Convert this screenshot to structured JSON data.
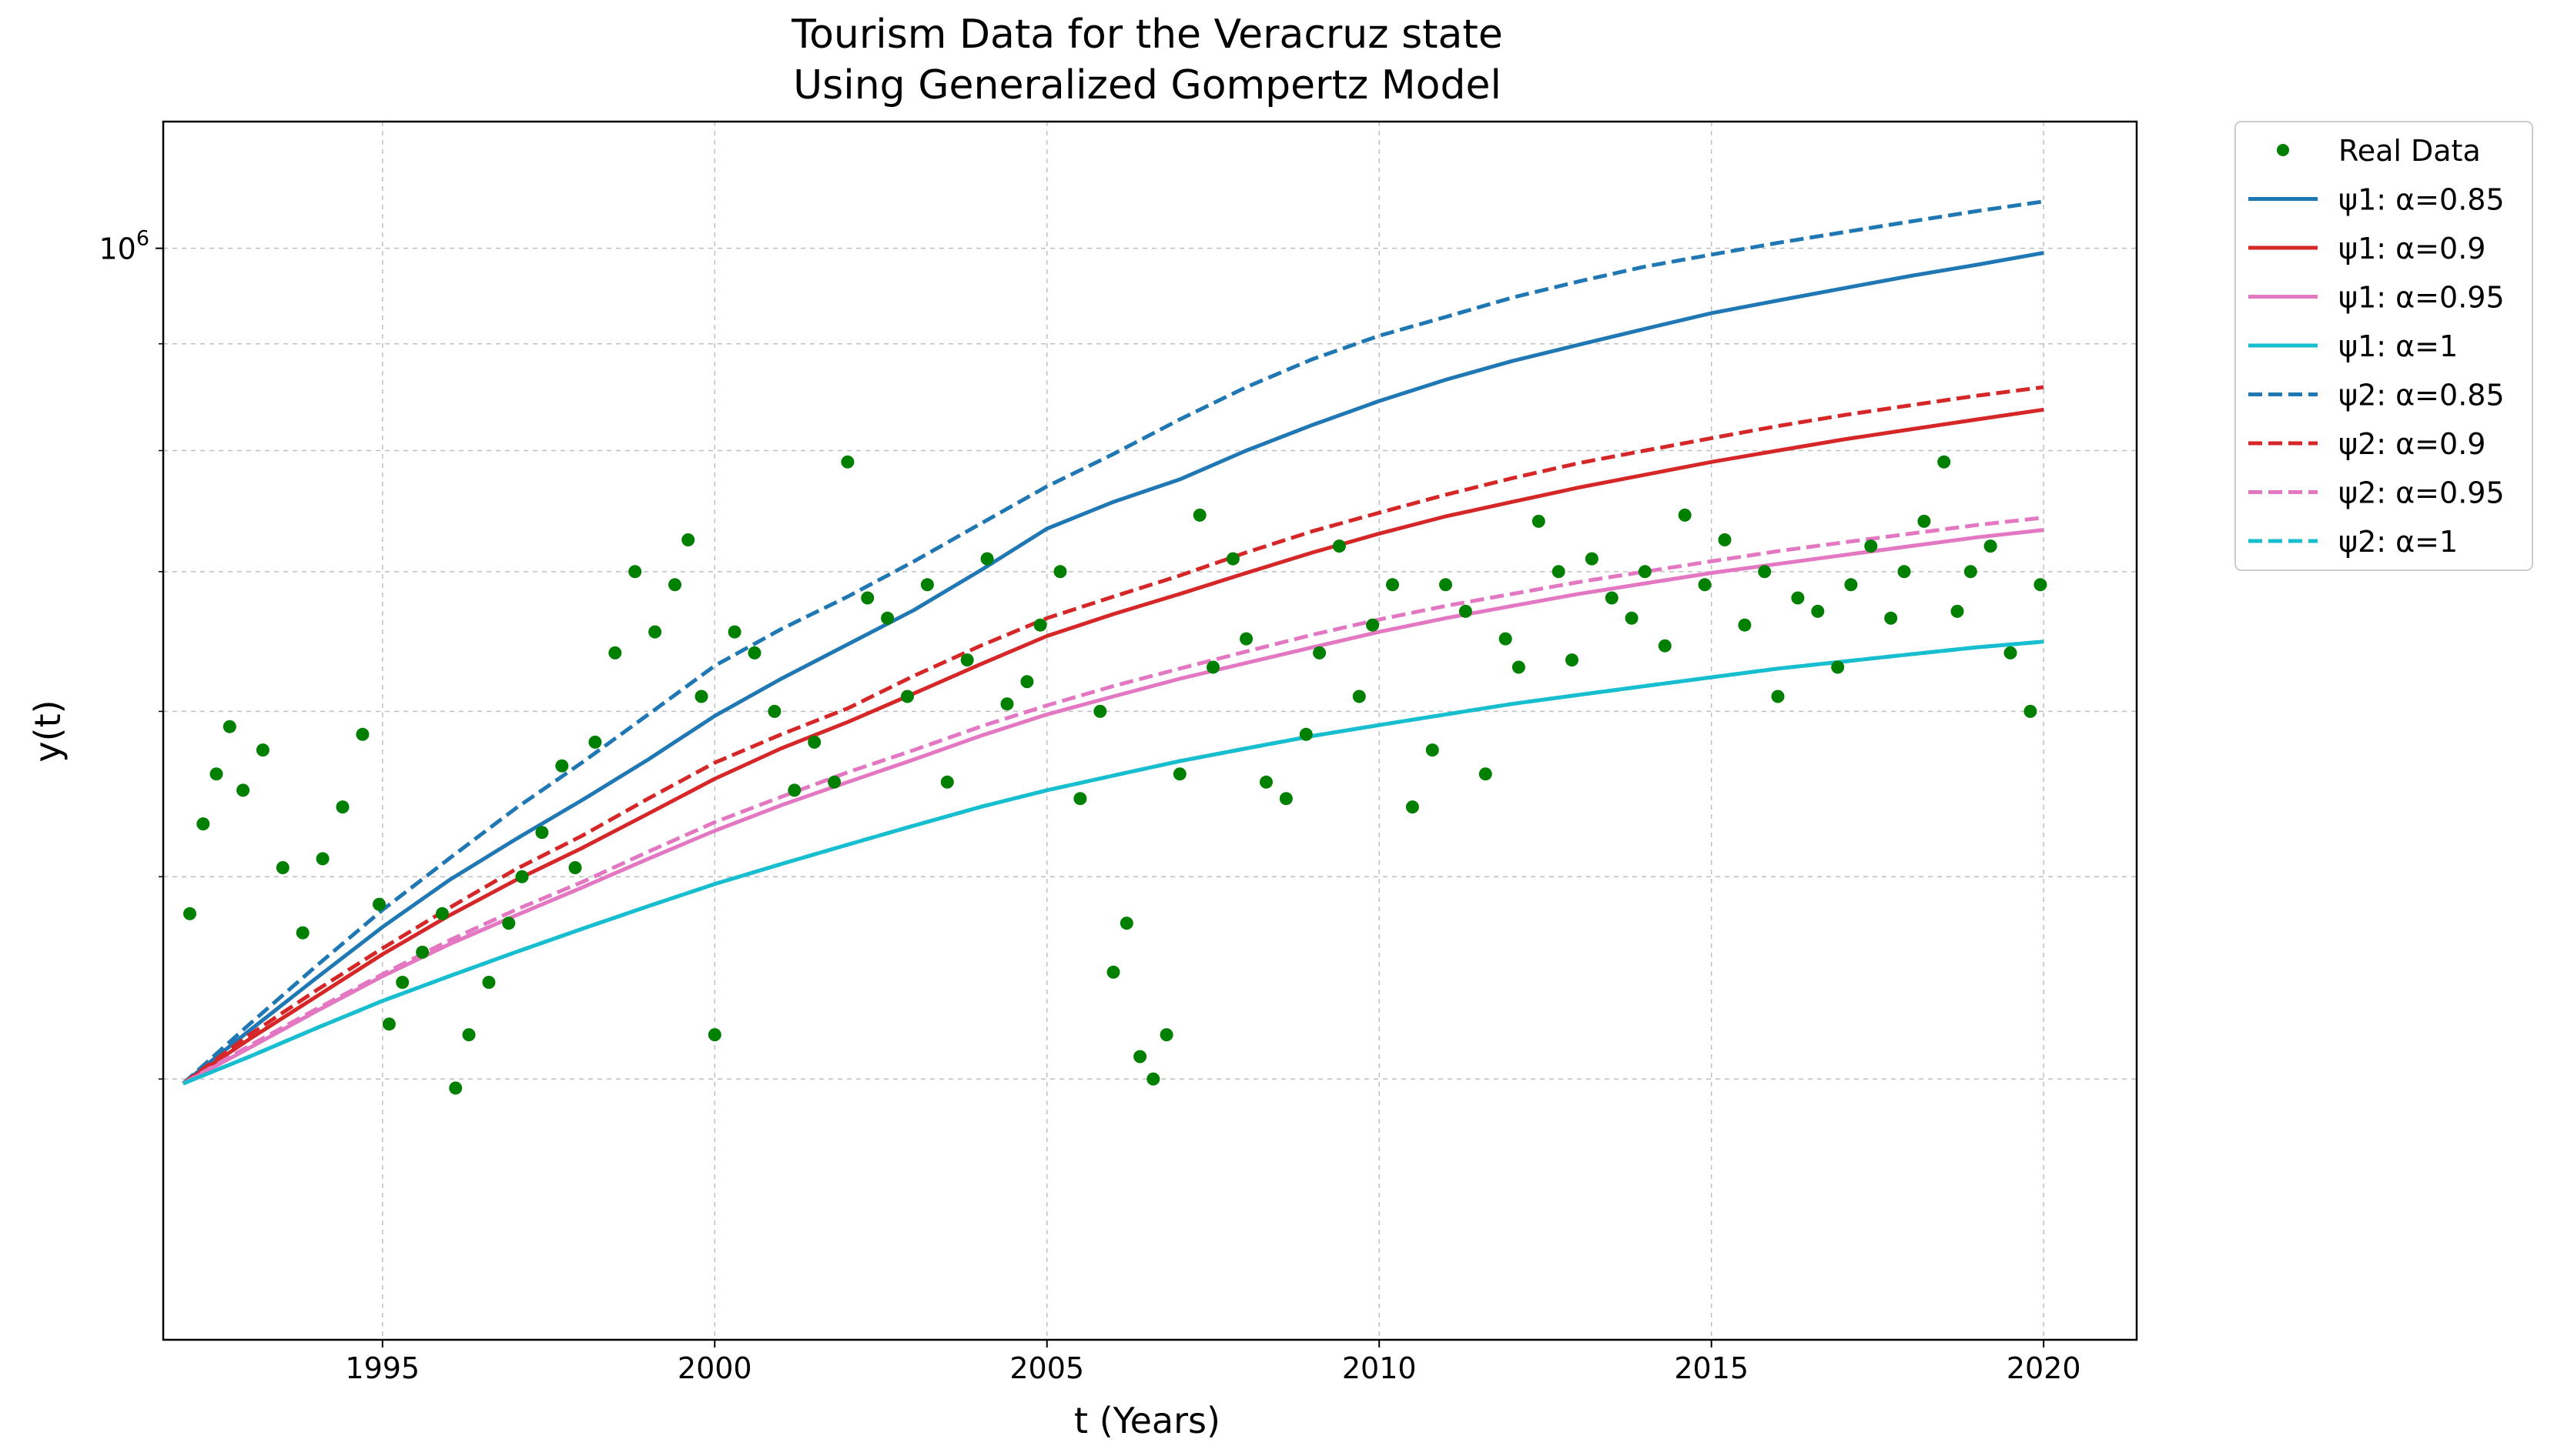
{
  "chart_data": {
    "type": "line",
    "title_line1": "Tourism Data for the Veracruz state",
    "title_line2": "Using Generalized Gompertz Model",
    "xlabel": "t (Years)",
    "ylabel": "y(t)",
    "yscale": "log",
    "xlim": [
      1991.7,
      2021.4
    ],
    "ylim": [
      300000,
      1150000
    ],
    "grid": true,
    "legend_position": "outside-top-right",
    "x_ticks": [
      1995,
      2000,
      2005,
      2010,
      2015,
      2020
    ],
    "y_major_tick": {
      "value": 1000000,
      "label_base": "10",
      "label_exp": "6"
    },
    "y_minor_ticks": [
      400000,
      500000,
      600000,
      700000,
      800000,
      900000
    ],
    "x": [
      1992,
      1993,
      1994,
      1995,
      1996,
      1997,
      1998,
      1999,
      2000,
      2001,
      2002,
      2003,
      2004,
      2005,
      2006,
      2007,
      2008,
      2009,
      2010,
      2011,
      2012,
      2013,
      2014,
      2015,
      2016,
      2017,
      2018,
      2019,
      2020
    ],
    "series": [
      {
        "name": "ψ1: α=0.85",
        "color": "#1f77b4",
        "dash": "solid",
        "values": [
          398000,
          422000,
          447000,
          473000,
          498000,
          521000,
          544000,
          569000,
          597000,
          622000,
          646000,
          671000,
          701000,
          734000,
          756000,
          775000,
          800000,
          823000,
          845000,
          865000,
          883000,
          899000,
          915000,
          931000,
          944000,
          957000,
          970000,
          982000,
          995000
        ]
      },
      {
        "name": "ψ1: α=0.9",
        "color": "#d62728",
        "dash": "solid",
        "values": [
          398000,
          418000,
          438000,
          459000,
          479000,
          498000,
          516000,
          536000,
          557000,
          576000,
          593000,
          612000,
          632000,
          652000,
          668000,
          683000,
          699000,
          715000,
          730000,
          744000,
          756000,
          768000,
          779000,
          790000,
          800000,
          810000,
          819000,
          828000,
          837000
        ]
      },
      {
        "name": "ψ1: α=0.95",
        "color": "#e377c2",
        "dash": "solid",
        "values": [
          398000,
          414000,
          431000,
          448000,
          464000,
          479000,
          494000,
          510000,
          526000,
          541000,
          555000,
          569000,
          584000,
          598000,
          610000,
          622000,
          633000,
          644000,
          655000,
          665000,
          674000,
          683000,
          691000,
          699000,
          706000,
          713000,
          720000,
          727000,
          733000
        ]
      },
      {
        "name": "ψ1: α=1",
        "color": "#17becf",
        "dash": "solid",
        "values": [
          398000,
          410000,
          423000,
          436000,
          448000,
          460000,
          472000,
          484000,
          496000,
          507000,
          518000,
          529000,
          540000,
          550000,
          559000,
          568000,
          576000,
          584000,
          591000,
          598000,
          605000,
          611000,
          617000,
          623000,
          629000,
          634000,
          639000,
          644000,
          648000
        ]
      },
      {
        "name": "ψ2: α=0.85",
        "color": "#1f77b4",
        "dash": "dashed",
        "values": [
          398000,
          425000,
          453000,
          482000,
          510000,
          539000,
          567000,
          598000,
          631000,
          657000,
          681000,
          708000,
          738000,
          769000,
          797000,
          828000,
          858000,
          885000,
          908000,
          927000,
          947000,
          964000,
          980000,
          993000,
          1006000,
          1018000,
          1030000,
          1042000,
          1053000
        ]
      },
      {
        "name": "ψ2: α=0.9",
        "color": "#d62728",
        "dash": "dashed",
        "values": [
          398000,
          420000,
          441000,
          462000,
          483000,
          504000,
          523000,
          545000,
          567000,
          585000,
          602000,
          624000,
          645000,
          665000,
          681000,
          697000,
          715000,
          732000,
          747000,
          762000,
          776000,
          789000,
          800000,
          811000,
          822000,
          832000,
          841000,
          850000,
          858000
        ]
      },
      {
        "name": "ψ2: α=0.95",
        "color": "#e377c2",
        "dash": "dashed",
        "values": [
          398000,
          415000,
          432000,
          449000,
          466000,
          482000,
          497000,
          514000,
          531000,
          546000,
          561000,
          575000,
          590000,
          604000,
          617000,
          629000,
          641000,
          653000,
          664000,
          674000,
          683000,
          692000,
          700000,
          708000,
          716000,
          723000,
          730000,
          737000,
          743000
        ]
      },
      {
        "name": "ψ2: α=1",
        "color": "#17becf",
        "dash": "dashed",
        "values": [
          398000,
          410000,
          423000,
          436000,
          448000,
          460000,
          472000,
          484000,
          496000,
          507000,
          518000,
          529000,
          540000,
          550000,
          559000,
          568000,
          576000,
          584000,
          591000,
          598000,
          605000,
          611000,
          617000,
          623000,
          629000,
          634000,
          639000,
          644000,
          648000
        ]
      }
    ],
    "scatter": {
      "name": "Real Data",
      "color": "#008000",
      "points": [
        [
          1992.1,
          480000
        ],
        [
          1992.3,
          530000
        ],
        [
          1992.5,
          560000
        ],
        [
          1992.7,
          590000
        ],
        [
          1992.9,
          550000
        ],
        [
          1993.2,
          575000
        ],
        [
          1993.5,
          505000
        ],
        [
          1993.8,
          470000
        ],
        [
          1994.1,
          510000
        ],
        [
          1994.4,
          540000
        ],
        [
          1994.7,
          585000
        ],
        [
          1994.95,
          485000
        ],
        [
          1995.1,
          425000
        ],
        [
          1995.3,
          445000
        ],
        [
          1995.6,
          460000
        ],
        [
          1995.9,
          480000
        ],
        [
          1996.1,
          396000
        ],
        [
          1996.3,
          420000
        ],
        [
          1996.6,
          445000
        ],
        [
          1996.9,
          475000
        ],
        [
          1997.1,
          500000
        ],
        [
          1997.4,
          525000
        ],
        [
          1997.7,
          565000
        ],
        [
          1997.9,
          505000
        ],
        [
          1998.2,
          580000
        ],
        [
          1998.5,
          640000
        ],
        [
          1998.8,
          700000
        ],
        [
          1999.1,
          655000
        ],
        [
          1999.4,
          690000
        ],
        [
          1999.6,
          725000
        ],
        [
          1999.8,
          610000
        ],
        [
          2000.0,
          420000
        ],
        [
          2000.3,
          655000
        ],
        [
          2000.6,
          640000
        ],
        [
          2000.9,
          600000
        ],
        [
          2001.2,
          550000
        ],
        [
          2001.5,
          580000
        ],
        [
          2001.8,
          555000
        ],
        [
          2002.0,
          790000
        ],
        [
          2002.3,
          680000
        ],
        [
          2002.6,
          665000
        ],
        [
          2002.9,
          610000
        ],
        [
          2003.2,
          690000
        ],
        [
          2003.5,
          555000
        ],
        [
          2003.8,
          635000
        ],
        [
          2004.1,
          710000
        ],
        [
          2004.4,
          605000
        ],
        [
          2004.7,
          620000
        ],
        [
          2004.9,
          660000
        ],
        [
          2005.2,
          700000
        ],
        [
          2005.5,
          545000
        ],
        [
          2005.8,
          600000
        ],
        [
          2006.0,
          450000
        ],
        [
          2006.2,
          475000
        ],
        [
          2006.4,
          410000
        ],
        [
          2006.6,
          400000
        ],
        [
          2006.8,
          420000
        ],
        [
          2007.0,
          560000
        ],
        [
          2007.3,
          745000
        ],
        [
          2007.5,
          630000
        ],
        [
          2007.8,
          710000
        ],
        [
          2008.0,
          650000
        ],
        [
          2008.3,
          555000
        ],
        [
          2008.6,
          545000
        ],
        [
          2008.9,
          585000
        ],
        [
          2009.1,
          640000
        ],
        [
          2009.4,
          720000
        ],
        [
          2009.7,
          610000
        ],
        [
          2009.9,
          660000
        ],
        [
          2010.2,
          690000
        ],
        [
          2010.5,
          540000
        ],
        [
          2010.8,
          575000
        ],
        [
          2011.0,
          690000
        ],
        [
          2011.3,
          670000
        ],
        [
          2011.6,
          560000
        ],
        [
          2011.9,
          650000
        ],
        [
          2012.1,
          630000
        ],
        [
          2012.4,
          740000
        ],
        [
          2012.7,
          700000
        ],
        [
          2012.9,
          635000
        ],
        [
          2013.2,
          710000
        ],
        [
          2013.5,
          680000
        ],
        [
          2013.8,
          665000
        ],
        [
          2014.0,
          700000
        ],
        [
          2014.3,
          645000
        ],
        [
          2014.6,
          745000
        ],
        [
          2014.9,
          690000
        ],
        [
          2015.2,
          725000
        ],
        [
          2015.5,
          660000
        ],
        [
          2015.8,
          700000
        ],
        [
          2016.0,
          610000
        ],
        [
          2016.3,
          680000
        ],
        [
          2016.6,
          670000
        ],
        [
          2016.9,
          630000
        ],
        [
          2017.1,
          690000
        ],
        [
          2017.4,
          720000
        ],
        [
          2017.7,
          665000
        ],
        [
          2017.9,
          700000
        ],
        [
          2018.2,
          740000
        ],
        [
          2018.5,
          790000
        ],
        [
          2018.7,
          670000
        ],
        [
          2018.9,
          700000
        ],
        [
          2019.2,
          720000
        ],
        [
          2019.5,
          640000
        ],
        [
          2019.8,
          600000
        ],
        [
          2019.95,
          690000
        ]
      ]
    }
  }
}
